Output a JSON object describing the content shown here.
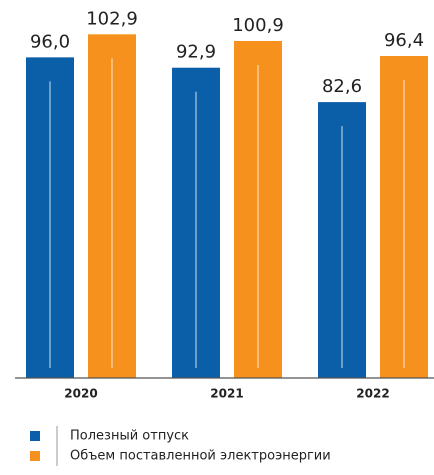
{
  "chart_data": {
    "type": "bar",
    "categories": [
      "2020",
      "2021",
      "2022"
    ],
    "series": [
      {
        "name": "Полезный отпуск",
        "color": "#0a5fa8",
        "values": [
          96.0,
          92.9,
          82.6
        ],
        "value_labels": [
          "96,0",
          "92,9",
          "82,6"
        ]
      },
      {
        "name": "Объем поставленной электроэнергии",
        "color": "#f6911e",
        "values": [
          102.9,
          100.9,
          96.4
        ],
        "value_labels": [
          "102,9",
          "100,9",
          "96,4"
        ]
      }
    ],
    "ylim": [
      0,
      110
    ]
  }
}
